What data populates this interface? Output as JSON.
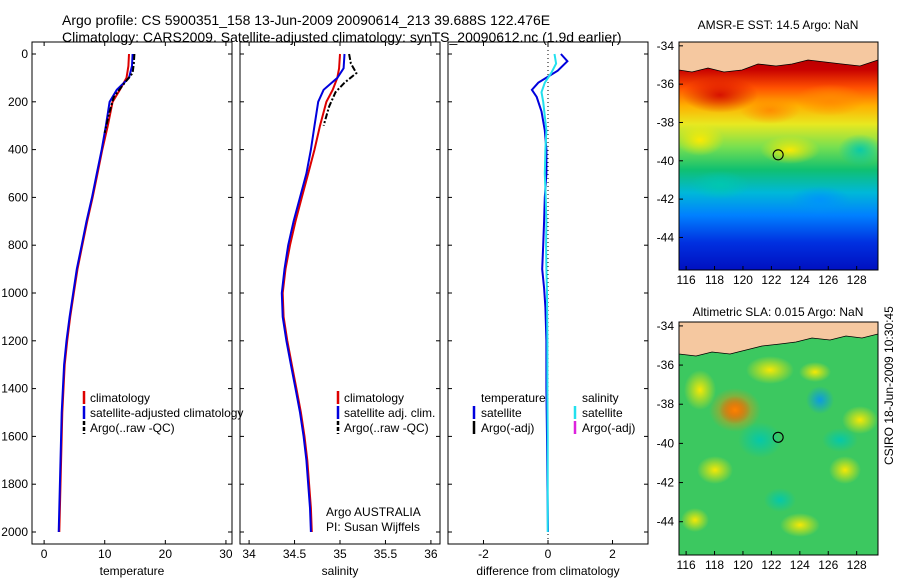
{
  "header": {
    "line1": "Argo profile: CS 5900351_158 13-Jun-2009 20090614_213 39.688S 122.476E",
    "line2": "Climatology: CARS2009. Satellite-adjusted climatology: synTS_20090612.nc (1.9d earlier)"
  },
  "side_text": "CSIRO 18-Jun-2009 10:30:45",
  "colors": {
    "climatology": "#dd0000",
    "satellite": "#0000dd",
    "argo": "#000000",
    "sat_salinity": "#22e0ee",
    "argo_adj_salinity": "#dd22dd"
  },
  "chart_data": [
    {
      "type": "line",
      "xlabel": "temperature",
      "ylabel": "",
      "xlim": [
        -2,
        31
      ],
      "ylim": [
        2050,
        0
      ],
      "xticks": [
        0,
        10,
        20,
        30
      ],
      "yticks": [
        0,
        200,
        400,
        600,
        800,
        1000,
        1200,
        1400,
        1600,
        1800,
        2000
      ],
      "legend": {
        "placement": "lower-right",
        "entries": [
          "climatology",
          "satellite-adjusted climatology",
          "Argo(..raw -QC)"
        ]
      },
      "series": [
        {
          "name": "climatology",
          "style": "solid",
          "color": "#dd0000",
          "points": [
            [
              14.0,
              0
            ],
            [
              13.9,
              50
            ],
            [
              13.6,
              100
            ],
            [
              12.5,
              150
            ],
            [
              11.3,
              200
            ],
            [
              10.5,
              300
            ],
            [
              9.6,
              400
            ],
            [
              8.8,
              500
            ],
            [
              8.0,
              600
            ],
            [
              7.1,
              700
            ],
            [
              6.3,
              800
            ],
            [
              5.5,
              900
            ],
            [
              4.9,
              1000
            ],
            [
              4.3,
              1100
            ],
            [
              3.8,
              1200
            ],
            [
              3.4,
              1300
            ],
            [
              3.2,
              1400
            ],
            [
              3.0,
              1500
            ],
            [
              2.9,
              1600
            ],
            [
              2.8,
              1700
            ],
            [
              2.7,
              1800
            ],
            [
              2.6,
              1900
            ],
            [
              2.5,
              2000
            ]
          ]
        },
        {
          "name": "satellite-adjusted climatology",
          "style": "solid",
          "color": "#0000dd",
          "points": [
            [
              14.6,
              0
            ],
            [
              14.5,
              50
            ],
            [
              14.0,
              100
            ],
            [
              12.0,
              150
            ],
            [
              10.8,
              200
            ],
            [
              10.2,
              300
            ],
            [
              9.5,
              400
            ],
            [
              8.7,
              500
            ],
            [
              7.9,
              600
            ],
            [
              7.0,
              700
            ],
            [
              6.2,
              800
            ],
            [
              5.4,
              900
            ],
            [
              4.8,
              1000
            ],
            [
              4.2,
              1100
            ],
            [
              3.7,
              1200
            ],
            [
              3.3,
              1300
            ],
            [
              3.1,
              1400
            ],
            [
              2.9,
              1500
            ],
            [
              2.8,
              1600
            ],
            [
              2.7,
              1700
            ],
            [
              2.6,
              1800
            ],
            [
              2.5,
              1900
            ],
            [
              2.4,
              2000
            ]
          ]
        },
        {
          "name": "Argo(..raw -QC)",
          "style": "dashdot",
          "color": "#000000",
          "points": [
            [
              14.9,
              0
            ],
            [
              14.8,
              40
            ],
            [
              14.6,
              80
            ],
            [
              13.0,
              130
            ],
            [
              11.5,
              180
            ],
            [
              10.7,
              250
            ],
            [
              10.0,
              330
            ]
          ]
        }
      ]
    },
    {
      "type": "line",
      "xlabel": "salinity",
      "ylabel": "",
      "xlim": [
        33.9,
        36.1
      ],
      "ylim": [
        2050,
        0
      ],
      "xticks": [
        34,
        34.5,
        35,
        35.5,
        36
      ],
      "yticks": [
        0,
        200,
        400,
        600,
        800,
        1000,
        1200,
        1400,
        1600,
        1800,
        2000
      ],
      "legend": {
        "placement": "lower-right",
        "entries": [
          "climatology",
          "satellite adj. clim.",
          "Argo(..raw -QC)"
        ]
      },
      "annotation": {
        "line1": "Argo AUSTRALIA",
        "line2": "PI: Susan Wijffels"
      },
      "series": [
        {
          "name": "climatology",
          "style": "solid",
          "color": "#dd0000",
          "points": [
            [
              35.0,
              0
            ],
            [
              34.99,
              60
            ],
            [
              34.97,
              100
            ],
            [
              34.92,
              150
            ],
            [
              34.85,
              200
            ],
            [
              34.78,
              300
            ],
            [
              34.72,
              400
            ],
            [
              34.65,
              500
            ],
            [
              34.58,
              600
            ],
            [
              34.51,
              700
            ],
            [
              34.45,
              800
            ],
            [
              34.4,
              900
            ],
            [
              34.37,
              1000
            ],
            [
              34.38,
              1100
            ],
            [
              34.42,
              1200
            ],
            [
              34.47,
              1300
            ],
            [
              34.52,
              1400
            ],
            [
              34.57,
              1500
            ],
            [
              34.61,
              1600
            ],
            [
              34.64,
              1700
            ],
            [
              34.66,
              1800
            ],
            [
              34.68,
              1900
            ],
            [
              34.69,
              2000
            ]
          ]
        },
        {
          "name": "satellite adj. clim.",
          "style": "solid",
          "color": "#0000dd",
          "points": [
            [
              35.05,
              0
            ],
            [
              35.04,
              60
            ],
            [
              34.97,
              100
            ],
            [
              34.82,
              150
            ],
            [
              34.76,
              200
            ],
            [
              34.72,
              300
            ],
            [
              34.68,
              400
            ],
            [
              34.63,
              500
            ],
            [
              34.56,
              600
            ],
            [
              34.49,
              700
            ],
            [
              34.43,
              800
            ],
            [
              34.39,
              900
            ],
            [
              34.36,
              1000
            ],
            [
              34.37,
              1100
            ],
            [
              34.41,
              1200
            ],
            [
              34.46,
              1300
            ],
            [
              34.51,
              1400
            ],
            [
              34.56,
              1500
            ],
            [
              34.6,
              1600
            ],
            [
              34.63,
              1700
            ],
            [
              34.65,
              1800
            ],
            [
              34.67,
              1900
            ],
            [
              34.68,
              2000
            ]
          ]
        },
        {
          "name": "Argo(..raw -QC)",
          "style": "dashdot",
          "color": "#000000",
          "points": [
            [
              35.1,
              0
            ],
            [
              35.12,
              40
            ],
            [
              35.18,
              80
            ],
            [
              35.05,
              120
            ],
            [
              34.95,
              160
            ],
            [
              34.88,
              220
            ],
            [
              34.82,
              300
            ]
          ]
        }
      ]
    },
    {
      "type": "line",
      "xlabel": "difference from climatology",
      "ylabel": "",
      "xlim": [
        -3.1,
        3.1
      ],
      "ylim": [
        2050,
        0
      ],
      "xticks": [
        -2,
        0,
        2
      ],
      "yticks": [
        0,
        200,
        400,
        600,
        800,
        1000,
        1200,
        1400,
        1600,
        1800,
        2000
      ],
      "legend": {
        "placement": "lower",
        "columns": [
          {
            "heading": "temperature",
            "entries": [
              "satellite",
              "Argo(-adj)"
            ]
          },
          {
            "heading": "salinity",
            "entries": [
              "satellite",
              "Argo(-adj)"
            ]
          }
        ]
      },
      "zero_line": true,
      "series": [
        {
          "name": "temperature satellite",
          "style": "solid",
          "color": "#0000dd",
          "points": [
            [
              0.4,
              0
            ],
            [
              0.6,
              30
            ],
            [
              0.3,
              70
            ],
            [
              -0.3,
              120
            ],
            [
              -0.5,
              150
            ],
            [
              -0.35,
              180
            ],
            [
              -0.2,
              240
            ],
            [
              -0.1,
              320
            ],
            [
              -0.05,
              400
            ],
            [
              -0.05,
              500
            ],
            [
              -0.1,
              600
            ],
            [
              -0.12,
              700
            ],
            [
              -0.15,
              800
            ],
            [
              -0.18,
              900
            ],
            [
              -0.12,
              980
            ],
            [
              -0.08,
              1060
            ],
            [
              -0.05,
              1200
            ],
            [
              -0.05,
              1400
            ],
            [
              -0.03,
              1600
            ],
            [
              -0.02,
              1800
            ],
            [
              0,
              2000
            ]
          ]
        },
        {
          "name": "salinity satellite",
          "style": "solid",
          "color": "#22e0ee",
          "points": [
            [
              0.2,
              0
            ],
            [
              0.25,
              40
            ],
            [
              0.1,
              80
            ],
            [
              -0.1,
              120
            ],
            [
              -0.2,
              160
            ],
            [
              -0.15,
              200
            ],
            [
              -0.1,
              260
            ],
            [
              -0.05,
              320
            ],
            [
              -0.08,
              400
            ],
            [
              -0.1,
              500
            ],
            [
              -0.07,
              600
            ],
            [
              -0.05,
              700
            ],
            [
              -0.06,
              800
            ],
            [
              -0.05,
              900
            ],
            [
              -0.03,
              1000
            ],
            [
              -0.02,
              1200
            ],
            [
              -0.02,
              1400
            ],
            [
              -0.01,
              1600
            ],
            [
              -0.01,
              1800
            ],
            [
              -0.01,
              2000
            ]
          ]
        }
      ]
    },
    {
      "type": "heatmap",
      "title": "AMSR-E SST: 14.5 Argo: NaN",
      "xlim": [
        115.5,
        129.5
      ],
      "ylim": [
        -45.7,
        -33.8
      ],
      "xticks": [
        116,
        118,
        120,
        122,
        124,
        126,
        128
      ],
      "yticks": [
        -34,
        -36,
        -38,
        -40,
        -42,
        -44
      ],
      "marker": {
        "lon": 122.476,
        "lat": -39.688
      },
      "colormap": "jet"
    },
    {
      "type": "heatmap",
      "title": "Altimetric SLA: 0.015 Argo: NaN",
      "xlim": [
        115.5,
        129.5
      ],
      "ylim": [
        -45.7,
        -33.8
      ],
      "xticks": [
        116,
        118,
        120,
        122,
        124,
        126,
        128
      ],
      "yticks": [
        -34,
        -36,
        -38,
        -40,
        -42,
        -44
      ],
      "marker": {
        "lon": 122.476,
        "lat": -39.688
      },
      "colormap": "jet"
    }
  ]
}
